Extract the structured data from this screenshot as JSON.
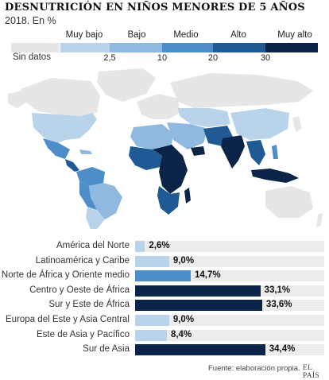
{
  "header": {
    "title": "DESNUTRICIÓN EN NIÑOS MENORES DE 5 AÑOS",
    "subtitle": "2018. En %"
  },
  "legend": {
    "no_data_label": "Sin datos",
    "categories": [
      "Muy bajo",
      "Bajo",
      "Medio",
      "Alto",
      "Muy alto"
    ],
    "ticks": [
      "2,5",
      "10",
      "20",
      "30"
    ],
    "colors": {
      "no_data": "#e6e6e6",
      "muy_bajo": "#b9d3ea",
      "bajo": "#8fb9df",
      "medio": "#4d8ec9",
      "alto": "#1f5a94",
      "muy_alto": "#0c2448"
    }
  },
  "chart_data": {
    "type": "bar",
    "orientation": "horizontal",
    "categories": [
      "América del Norte",
      "Latinoamérica y Caribe",
      "Norte de África y Oriente medio",
      "Centro y Oeste de África",
      "Sur y Este de África",
      "Europa del Este y Asia Central",
      "Este de Asia y Pacífico",
      "Sur de Asia"
    ],
    "values": [
      2.6,
      9.0,
      14.7,
      33.1,
      33.6,
      9.0,
      8.4,
      34.4
    ],
    "value_labels": [
      "2,6%",
      "9,0%",
      "14,7%",
      "33,1%",
      "33,6%",
      "9,0%",
      "8,4%",
      "34,4%"
    ],
    "bar_colors": [
      "#b9d3ea",
      "#b9d3ea",
      "#4d8ec9",
      "#0c2448",
      "#0c2448",
      "#b9d3ea",
      "#b9d3ea",
      "#0c2448"
    ],
    "xlim": [
      0,
      50
    ],
    "unit": "%"
  },
  "footer": {
    "source": "Fuente: elaboración propia.",
    "brand": "EL PAÍS"
  }
}
